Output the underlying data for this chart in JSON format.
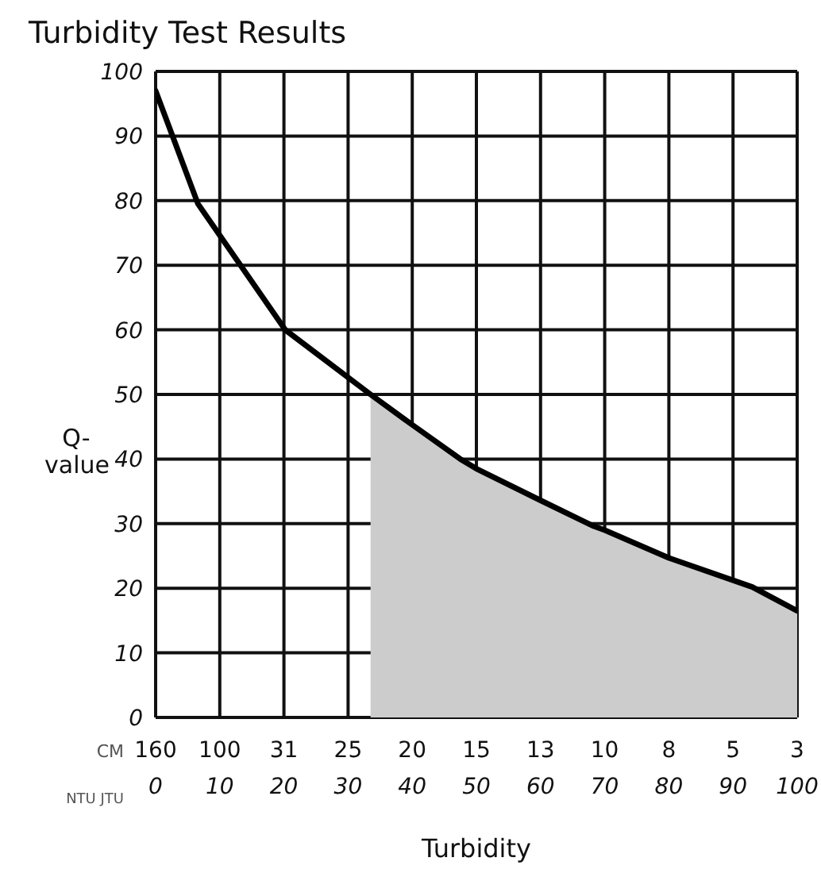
{
  "chart_data": {
    "type": "line",
    "title": "Turbidity Test Results",
    "xlabel": "Turbidity",
    "ylabel": "Q-value",
    "annotations": [
      "CM",
      "NTU JTU",
      "160",
      "100",
      "31",
      "25",
      "20",
      "15",
      "13",
      "10",
      "8",
      "5",
      "3"
    ],
    "xlim": [
      0,
      100
    ],
    "xticks": [
      0,
      10,
      20,
      30,
      40,
      50,
      60,
      70,
      80,
      90,
      100
    ],
    "ylim": [
      0,
      100
    ],
    "yticks": [
      0,
      10,
      20,
      30,
      40,
      50,
      60,
      70,
      80,
      90,
      100
    ],
    "grid": true,
    "series": [
      {
        "type": "area",
        "color": "#cccccc",
        "x": [
          33.5,
          40,
          47.5,
          50,
          60,
          68.3,
          70,
          80,
          93,
          100
        ],
        "values": [
          50,
          45.3,
          40,
          38.5,
          33.6,
          29.6,
          29,
          24.7,
          20.2,
          16.5
        ]
      },
      {
        "color": "#000000",
        "x": [
          0,
          6.6,
          20.2,
          33.5,
          40,
          47.5,
          50,
          60,
          68.3,
          70,
          80,
          93,
          100
        ],
        "values": [
          97,
          79.5,
          60,
          50,
          45.3,
          40,
          38.5,
          33.6,
          29.6,
          29,
          24.7,
          20.2,
          16.5
        ]
      }
    ]
  }
}
